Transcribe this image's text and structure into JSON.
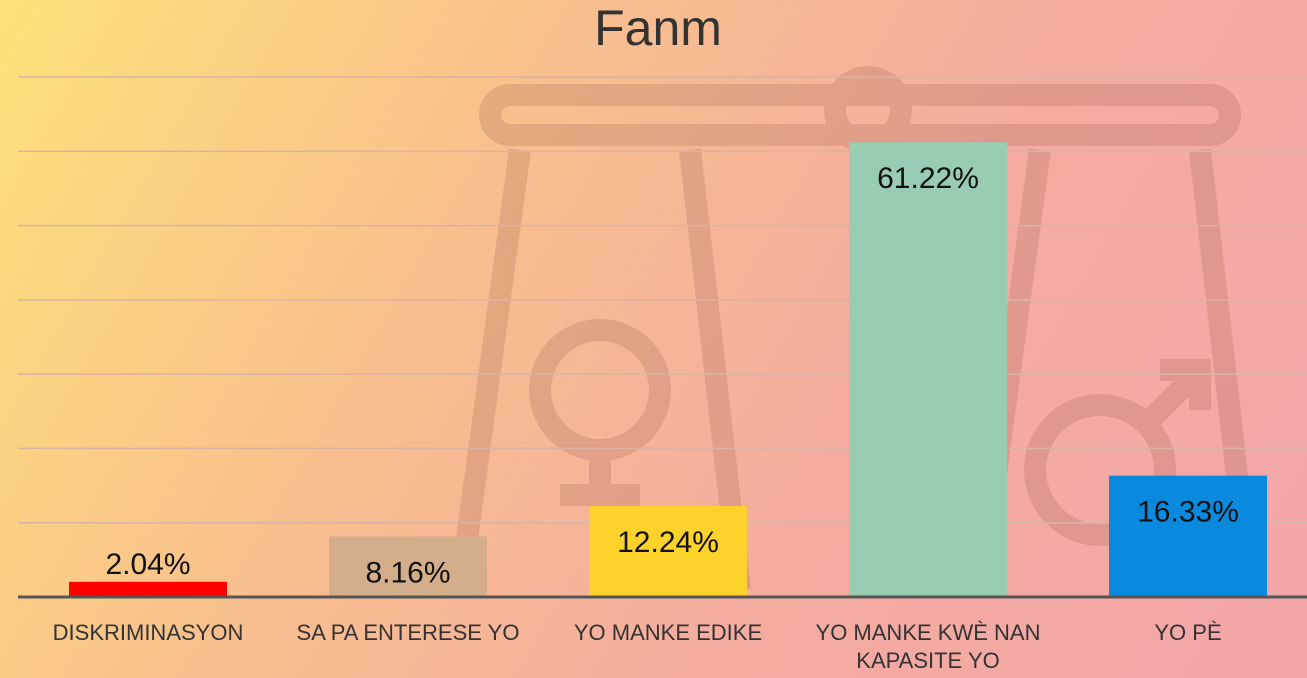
{
  "chart_data": {
    "type": "bar",
    "title": "Fanm",
    "categories": [
      "DISKRIMINASYON",
      "SA PA ENTERESE YO",
      "YO MANKE EDIKE",
      "YO MANKE KWÈ NAN KAPASITE YO",
      "YO PÈ"
    ],
    "values": [
      2.04,
      8.16,
      12.24,
      61.22,
      16.33
    ],
    "value_labels": [
      "2.04%",
      "8.16%",
      "12.24%",
      "61.22%",
      "16.33%"
    ],
    "colors": [
      "#ff0000",
      "#d4ae8a",
      "#fdd22b",
      "#98cdb4",
      "#0a8ade"
    ],
    "ylim": [
      0,
      70
    ],
    "yticks": [
      0,
      10,
      20,
      30,
      40,
      50,
      60,
      70
    ],
    "grid": true
  }
}
